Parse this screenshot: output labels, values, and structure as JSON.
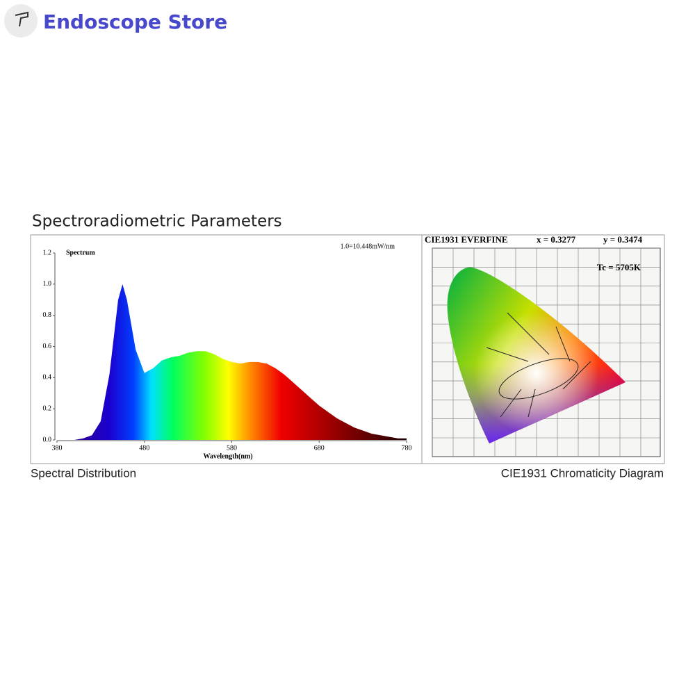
{
  "header": {
    "store_name": "Endoscope Store"
  },
  "section_title": "Spectroradiometric Parameters",
  "chart_data": {
    "type": "area",
    "title": "Spectrum",
    "annotation": "1.0=10.448mW/nm",
    "x_label": "Wavelength(nm)",
    "caption": "Spectral Distribution",
    "x": [
      380,
      390,
      400,
      410,
      420,
      430,
      440,
      450,
      455,
      460,
      470,
      480,
      490,
      500,
      510,
      520,
      530,
      540,
      550,
      560,
      570,
      580,
      590,
      600,
      610,
      620,
      630,
      640,
      650,
      660,
      670,
      680,
      690,
      700,
      710,
      720,
      730,
      740,
      750,
      760,
      770,
      780
    ],
    "values": [
      0,
      0,
      0,
      0.01,
      0.03,
      0.12,
      0.42,
      0.9,
      1.0,
      0.9,
      0.58,
      0.43,
      0.46,
      0.51,
      0.53,
      0.54,
      0.56,
      0.57,
      0.57,
      0.55,
      0.52,
      0.5,
      0.49,
      0.5,
      0.5,
      0.49,
      0.46,
      0.42,
      0.37,
      0.32,
      0.27,
      0.22,
      0.18,
      0.14,
      0.11,
      0.08,
      0.06,
      0.04,
      0.03,
      0.02,
      0.01,
      0.01
    ],
    "xlim": [
      380,
      780
    ],
    "xticks": [
      380,
      480,
      580,
      680,
      780
    ],
    "ylim": [
      0,
      1.2
    ],
    "yticks": [
      {
        "value": 0,
        "label": "0.0"
      },
      0.2,
      0.4,
      0.6,
      0.8,
      {
        "value": 1,
        "label": "1.0"
      },
      1.2
    ]
  },
  "cie": {
    "header": "CIE1931 EVERFINE",
    "x_value": "x = 0.3277",
    "y_value": "y = 0.3474",
    "tc": "Tc = 5705K",
    "caption": "CIE1931 Chromaticity Diagram"
  }
}
